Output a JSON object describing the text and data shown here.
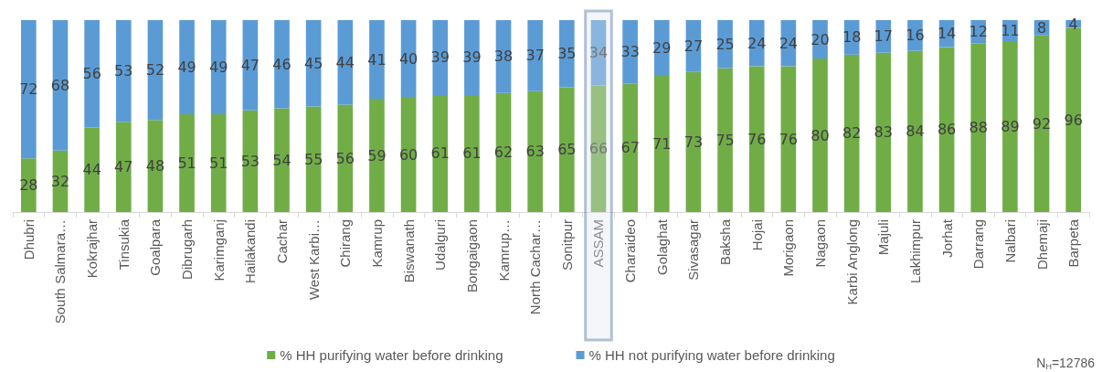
{
  "chart_data": {
    "type": "bar",
    "stacked": true,
    "data_labels": true,
    "tick_labels": "x",
    "grid": false,
    "legend": "bottom",
    "ylim": [
      0,
      100
    ],
    "categories": [
      "Dhubri",
      "South Salmara…",
      "Kokrajhar",
      "Tinsukia",
      "Goalpara",
      "Dibrugarh",
      "Karimganj",
      "Hailakandi",
      "Cachar",
      "West Karbi…",
      "Chirang",
      "Kamrup",
      "Biswanath",
      "Udalguri",
      "Bongaigaon",
      "Kamrup…",
      "North Cachar…",
      "Sonitpur",
      "ASSAM",
      "Charaideo",
      "Golaghat",
      "Sivasagar",
      "Baksha",
      "Hojai",
      "Morigaon",
      "Nagaon",
      "Karbi Anglong",
      "Majuli",
      "Lakhimpur",
      "Jorhat",
      "Darrang",
      "Nalbari",
      "Dhemaji",
      "Barpeta"
    ],
    "series": [
      {
        "name": "% HH purifying water before drinking",
        "color": "#70ad47",
        "values": [
          28,
          32,
          44,
          47,
          48,
          51,
          51,
          53,
          54,
          55,
          56,
          59,
          60,
          61,
          61,
          62,
          63,
          65,
          66,
          67,
          71,
          73,
          75,
          76,
          76,
          80,
          82,
          83,
          84,
          86,
          88,
          89,
          92,
          96
        ]
      },
      {
        "name": "% HH not purifying water before drinking",
        "color": "#5b9bd5",
        "values": [
          72,
          68,
          56,
          53,
          52,
          49,
          49,
          47,
          46,
          45,
          44,
          41,
          40,
          39,
          39,
          38,
          37,
          35,
          34,
          33,
          29,
          27,
          25,
          24,
          24,
          20,
          18,
          17,
          16,
          14,
          12,
          11,
          8,
          4
        ]
      }
    ],
    "bands": [
      {
        "axis": "x",
        "from": "ASSAM",
        "to": "ASSAM",
        "color": "#dfe6f2"
      }
    ],
    "annotations": [
      "N$_{H}$=12786"
    ]
  }
}
